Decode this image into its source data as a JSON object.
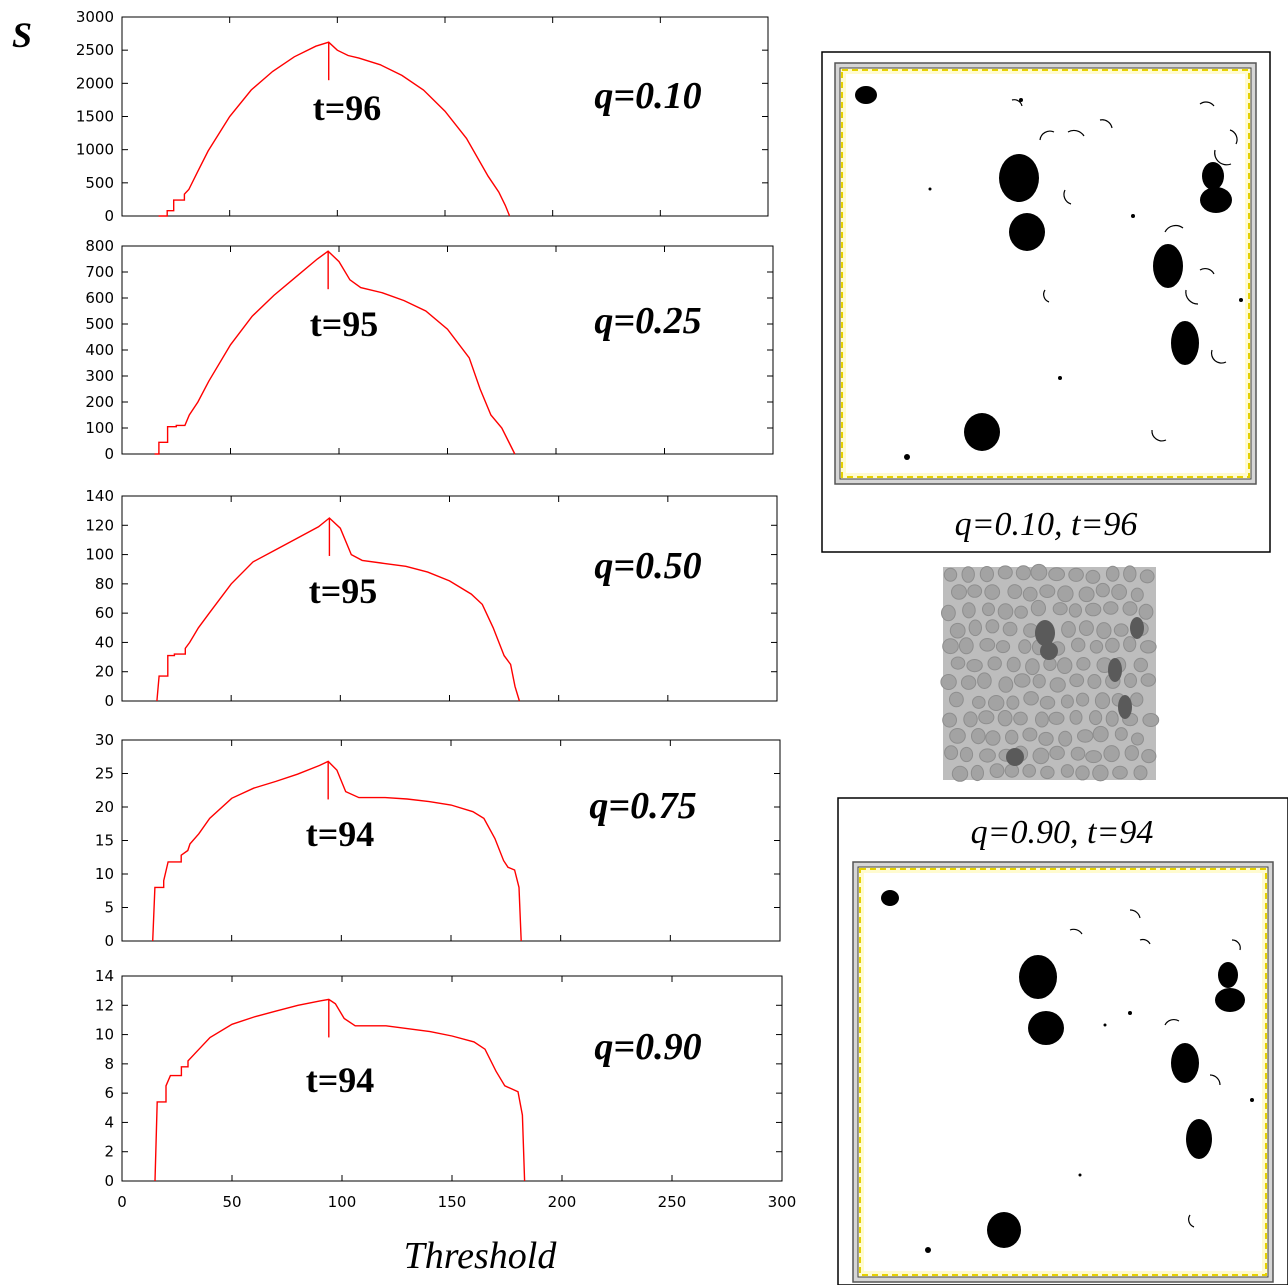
{
  "figure": {
    "y_symbol": "S",
    "x_axis_title": "Threshold",
    "top_panel_caption": "q=0.10, t=96",
    "bottom_panel_caption": "q=0.90, t=94"
  },
  "chart_data": [
    {
      "type": "line",
      "series_color": "#ff0000",
      "q_label": "q=0.10",
      "t_label": "t=96",
      "peak_x": 96,
      "peak_y": 2620,
      "xlim": [
        0,
        300
      ],
      "ylim": [
        0,
        3000
      ],
      "yticks": [
        0,
        500,
        1000,
        1500,
        2000,
        2500,
        3000
      ],
      "xticks": [
        0,
        50,
        100,
        150,
        200,
        250,
        300
      ],
      "show_x_tick_labels": false,
      "x": [
        17,
        21,
        21,
        24,
        24,
        29,
        29,
        31,
        35,
        40,
        50,
        60,
        70,
        80,
        90,
        96,
        100,
        105,
        110,
        120,
        130,
        140,
        150,
        160,
        170,
        175,
        178,
        180
      ],
      "y": [
        0,
        0,
        80,
        80,
        240,
        240,
        330,
        400,
        660,
        980,
        1500,
        1900,
        2180,
        2400,
        2560,
        2620,
        2500,
        2420,
        2380,
        2280,
        2120,
        1900,
        1580,
        1170,
        600,
        360,
        160,
        0
      ]
    },
    {
      "type": "line",
      "series_color": "#ff0000",
      "q_label": "q=0.25",
      "t_label": "t=95",
      "peak_x": 95,
      "peak_y": 780,
      "xlim": [
        0,
        300
      ],
      "ylim": [
        0,
        800
      ],
      "yticks": [
        0,
        100,
        200,
        300,
        400,
        500,
        600,
        700,
        800
      ],
      "xticks": [
        0,
        50,
        100,
        150,
        200,
        250,
        300
      ],
      "show_x_tick_labels": false,
      "x": [
        15,
        17,
        17,
        21,
        21,
        25,
        25,
        29,
        31,
        35,
        40,
        50,
        60,
        70,
        80,
        90,
        95,
        100,
        105,
        110,
        120,
        130,
        140,
        150,
        160,
        165,
        170,
        175,
        178,
        181
      ],
      "y": [
        0,
        0,
        45,
        45,
        105,
        105,
        110,
        110,
        150,
        200,
        280,
        420,
        530,
        610,
        680,
        750,
        780,
        740,
        670,
        640,
        620,
        590,
        550,
        480,
        370,
        250,
        150,
        100,
        50,
        0
      ]
    },
    {
      "type": "line",
      "series_color": "#ff0000",
      "q_label": "q=0.50",
      "t_label": "t=95",
      "peak_x": 95,
      "peak_y": 125,
      "xlim": [
        0,
        300
      ],
      "ylim": [
        0,
        140
      ],
      "yticks": [
        0,
        20,
        40,
        60,
        80,
        100,
        120,
        140
      ],
      "xticks": [
        0,
        50,
        100,
        150,
        200,
        250,
        300
      ],
      "show_x_tick_labels": false,
      "x": [
        16,
        17,
        17,
        21,
        21,
        24,
        24,
        29,
        29,
        31,
        35,
        40,
        50,
        60,
        70,
        80,
        90,
        95,
        100,
        105,
        110,
        120,
        130,
        140,
        150,
        160,
        165,
        170,
        175,
        178,
        180,
        182
      ],
      "y": [
        0,
        17,
        17,
        17,
        31,
        31,
        32,
        32,
        36,
        40,
        50,
        60,
        80,
        95,
        103,
        111,
        119,
        125,
        118,
        100,
        96,
        94,
        92,
        88,
        82,
        73,
        66,
        50,
        31,
        25,
        10,
        0
      ]
    },
    {
      "type": "line",
      "series_color": "#ff0000",
      "q_label": "q=0.75",
      "t_label": "t=94",
      "peak_x": 94,
      "peak_y": 26.8,
      "xlim": [
        0,
        300
      ],
      "ylim": [
        0,
        30
      ],
      "yticks": [
        0,
        5,
        10,
        15,
        20,
        25,
        30
      ],
      "xticks": [
        0,
        50,
        100,
        150,
        200,
        250,
        300
      ],
      "show_x_tick_labels": false,
      "x": [
        14,
        15,
        15,
        19,
        19,
        21,
        21,
        27,
        27,
        30,
        31,
        35,
        40,
        50,
        60,
        70,
        80,
        90,
        94,
        98,
        102,
        108,
        120,
        130,
        140,
        150,
        160,
        165,
        170,
        174,
        176,
        179,
        181,
        182
      ],
      "y": [
        0,
        8,
        8,
        8,
        9,
        11.8,
        11.8,
        11.8,
        12.8,
        13.5,
        14.5,
        16,
        18.3,
        21.3,
        22.8,
        23.8,
        24.9,
        26.2,
        26.8,
        25.5,
        22.3,
        21.4,
        21.4,
        21.2,
        20.8,
        20.3,
        19.3,
        18.3,
        15.3,
        12,
        11,
        10.6,
        8,
        0
      ]
    },
    {
      "type": "line",
      "series_color": "#ff0000",
      "q_label": "q=0.90",
      "t_label": "t=94",
      "peak_x": 94,
      "peak_y": 12.4,
      "xlim": [
        0,
        300
      ],
      "ylim": [
        0,
        14
      ],
      "yticks": [
        0,
        2,
        4,
        6,
        8,
        10,
        12,
        14
      ],
      "xticks": [
        0,
        50,
        100,
        150,
        200,
        250,
        300
      ],
      "show_x_tick_labels": true,
      "x": [
        15,
        16,
        16,
        20,
        20,
        22,
        22,
        27,
        27,
        30,
        30,
        35,
        40,
        50,
        60,
        70,
        80,
        90,
        94,
        97,
        101,
        106,
        120,
        130,
        140,
        150,
        160,
        165,
        170,
        174,
        177,
        180,
        182,
        183
      ],
      "y": [
        0,
        5.4,
        5.4,
        5.4,
        6.5,
        7.2,
        7.2,
        7.2,
        7.8,
        7.8,
        8.2,
        9,
        9.8,
        10.7,
        11.2,
        11.6,
        12,
        12.3,
        12.4,
        12.1,
        11.1,
        10.6,
        10.6,
        10.4,
        10.2,
        9.9,
        9.5,
        9,
        7.5,
        6.5,
        6.3,
        6.1,
        4.5,
        0
      ]
    }
  ]
}
